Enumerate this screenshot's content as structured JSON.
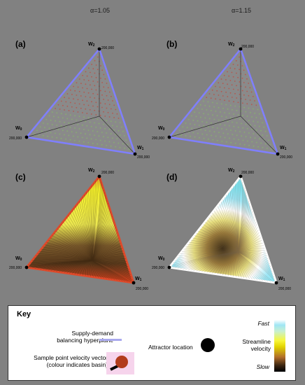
{
  "columns": {
    "left_header": "α=1.05",
    "right_header": "α=1.15"
  },
  "panels": [
    {
      "label": "(a)",
      "style": "vectors"
    },
    {
      "label": "(b)",
      "style": "vectors"
    },
    {
      "label": "(c)",
      "style": "streamlines"
    },
    {
      "label": "(d)",
      "style": "streamlines"
    }
  ],
  "vertices": {
    "top": {
      "name": "W",
      "sub": "2",
      "value": "200,000"
    },
    "left": {
      "name": "W",
      "sub": "0",
      "value": "200,000"
    },
    "right": {
      "name": "W",
      "sub": "1",
      "value": "200,000"
    }
  },
  "key": {
    "title": "Key",
    "hyperplane_line1": "Supply-demand",
    "hyperplane_line2": "balancing hyperplane",
    "attractor": "Attractor location",
    "sample_line1": "Sample point velocity vector",
    "sample_line2": "(colour indicates basin)",
    "fast": "Fast",
    "streamline_line1": "Streamline",
    "streamline_line2": "velocity",
    "slow": "Slow"
  },
  "colors": {
    "background": "#818181",
    "hyperplane": "#7f7fff",
    "basin_red": "#b4584f",
    "basin_green": "#86b06e",
    "fast": "#7de3f0",
    "mid": "#f5f21a",
    "slow": "#000000"
  }
}
